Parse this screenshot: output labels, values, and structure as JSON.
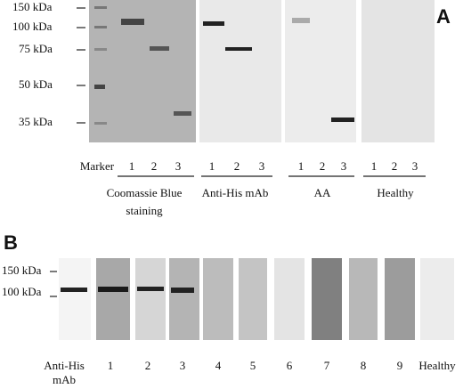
{
  "panel_a": {
    "label": "A",
    "markers": [
      "150 kDa",
      "100 kDa",
      "75 kDa",
      "50 kDa",
      "35 kDa"
    ],
    "lanes": [
      "Marker",
      "1",
      "2",
      "3",
      "1",
      "2",
      "3",
      "1",
      "2",
      "3",
      "1",
      "2",
      "3"
    ],
    "groups": [
      {
        "lines": [
          "Coomassie Blue",
          "staining"
        ]
      },
      {
        "lines": [
          "Anti-His mAb"
        ]
      },
      {
        "lines": [
          "AA"
        ]
      },
      {
        "lines": [
          "Healthy"
        ]
      }
    ]
  },
  "panel_b": {
    "label": "B",
    "markers": [
      "150 kDa",
      "100 kDa"
    ],
    "lanes": [
      {
        "lines": [
          "Anti-His",
          "mAb"
        ]
      },
      {
        "lines": [
          "1"
        ]
      },
      {
        "lines": [
          "2"
        ]
      },
      {
        "lines": [
          "3"
        ]
      },
      {
        "lines": [
          "4"
        ]
      },
      {
        "lines": [
          "5"
        ]
      },
      {
        "lines": [
          "6"
        ]
      },
      {
        "lines": [
          "7"
        ]
      },
      {
        "lines": [
          "8"
        ]
      },
      {
        "lines": [
          "9"
        ]
      },
      {
        "lines": [
          "Healthy"
        ]
      }
    ]
  }
}
